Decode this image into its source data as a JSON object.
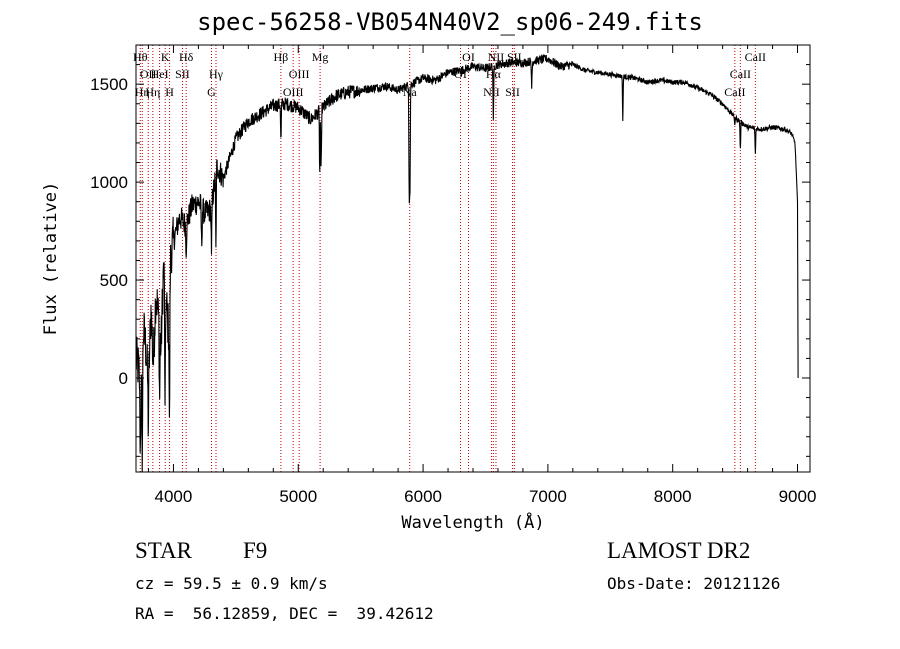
{
  "chart_data": {
    "type": "line",
    "title": "spec-56258-VB054N40V2_sp06-249.fits",
    "xlabel": "Wavelength (Å)",
    "ylabel": "Flux (relative)",
    "xlim": [
      3700,
      9100
    ],
    "ylim": [
      -480,
      1700
    ],
    "xticks": [
      4000,
      5000,
      6000,
      7000,
      8000,
      9000
    ],
    "xtick_labels": [
      "4000",
      "5000",
      "6000",
      "7000",
      "8000",
      "9000"
    ],
    "yticks": [
      0,
      500,
      1000,
      1500
    ],
    "ytick_labels": [
      "0",
      "500",
      "1000",
      "1500"
    ],
    "grid": false,
    "series": [
      {
        "x": [
          3700,
          3720,
          3740,
          3760,
          3780,
          3800,
          3820,
          3840,
          3860,
          3880,
          3900,
          3920,
          3940,
          3960,
          3980,
          4000,
          4050,
          4100,
          4150,
          4200,
          4250,
          4300,
          4350,
          4400,
          4450,
          4500,
          4600,
          4700,
          4800,
          4900,
          5000,
          5100,
          5200,
          5300,
          5400,
          5500,
          5600,
          5700,
          5800,
          5900,
          6000,
          6100,
          6200,
          6300,
          6400,
          6500,
          6600,
          6700,
          6800,
          6900,
          7000,
          7100,
          7200,
          7300,
          7400,
          7500,
          7600,
          7700,
          7800,
          7900,
          8000,
          8100,
          8200,
          8300,
          8400,
          8500,
          8600,
          8700,
          8800,
          8900,
          8950,
          8980,
          9000,
          9005
        ],
        "y": [
          100,
          50,
          -100,
          250,
          150,
          -50,
          350,
          100,
          450,
          300,
          150,
          550,
          400,
          250,
          650,
          700,
          820,
          780,
          880,
          900,
          840,
          860,
          1080,
          1020,
          1120,
          1220,
          1310,
          1350,
          1390,
          1400,
          1380,
          1320,
          1380,
          1440,
          1460,
          1470,
          1480,
          1490,
          1470,
          1500,
          1530,
          1520,
          1560,
          1570,
          1590,
          1580,
          1600,
          1610,
          1610,
          1620,
          1630,
          1590,
          1600,
          1570,
          1560,
          1550,
          1540,
          1530,
          1510,
          1520,
          1510,
          1510,
          1480,
          1450,
          1400,
          1330,
          1280,
          1270,
          1280,
          1270,
          1250,
          1200,
          900,
          0
        ]
      }
    ],
    "absorption_dips": [
      {
        "x": 3734,
        "y": -400
      },
      {
        "x": 3750,
        "y": -480
      },
      {
        "x": 3798,
        "y": -250
      },
      {
        "x": 3835,
        "y": 100
      },
      {
        "x": 3889,
        "y": -150
      },
      {
        "x": 3933,
        "y": -280
      },
      {
        "x": 3968,
        "y": -330
      },
      {
        "x": 4102,
        "y": 650
      },
      {
        "x": 4226,
        "y": 650
      },
      {
        "x": 4305,
        "y": 600
      },
      {
        "x": 4340,
        "y": 640
      },
      {
        "x": 4861,
        "y": 1180
      },
      {
        "x": 5172,
        "y": 1010
      },
      {
        "x": 5183,
        "y": 1020
      },
      {
        "x": 5889,
        "y": 900
      },
      {
        "x": 5895,
        "y": 950
      },
      {
        "x": 6563,
        "y": 1270
      },
      {
        "x": 6870,
        "y": 1480
      },
      {
        "x": 7600,
        "y": 1310
      },
      {
        "x": 8498,
        "y": 1290
      },
      {
        "x": 8542,
        "y": 1150
      },
      {
        "x": 8662,
        "y": 1130
      }
    ],
    "line_markers": [
      {
        "x": 3734,
        "label": "Hθ",
        "row": 0
      },
      {
        "x": 3750,
        "label": "Hη",
        "row": 2
      },
      {
        "x": 3798,
        "label": "OII",
        "row": 1
      },
      {
        "x": 3835,
        "label": "Hη",
        "row": 2
      },
      {
        "x": 3889,
        "label": "HeI",
        "row": 1
      },
      {
        "x": 3934,
        "label": "K",
        "row": 0
      },
      {
        "x": 3969,
        "label": "H",
        "row": 2
      },
      {
        "x": 4072,
        "label": "SII",
        "row": 1
      },
      {
        "x": 4102,
        "label": "Hδ",
        "row": 0
      },
      {
        "x": 4305,
        "label": "G",
        "row": 2
      },
      {
        "x": 4341,
        "label": "Hγ",
        "row": 1
      },
      {
        "x": 4861,
        "label": "Hβ",
        "row": 0
      },
      {
        "x": 4959,
        "label": "OIII",
        "row": 2
      },
      {
        "x": 5007,
        "label": "OIII",
        "row": 1
      },
      {
        "x": 5175,
        "label": "Mg",
        "row": 0
      },
      {
        "x": 5893,
        "label": "Na",
        "row": 2
      },
      {
        "x": 6300,
        "label": "OI",
        "row": 1
      },
      {
        "x": 6364,
        "label": "OI",
        "row": 0
      },
      {
        "x": 6548,
        "label": "NII",
        "row": 2
      },
      {
        "x": 6563,
        "label": "Hα",
        "row": 1
      },
      {
        "x": 6584,
        "label": "NII",
        "row": 0
      },
      {
        "x": 6717,
        "label": "SII",
        "row": 2
      },
      {
        "x": 6731,
        "label": "SII",
        "row": 0
      },
      {
        "x": 8498,
        "label": "CaII",
        "row": 2
      },
      {
        "x": 8542,
        "label": "CaII",
        "row": 1
      },
      {
        "x": 8662,
        "label": "CaII",
        "row": 0
      }
    ]
  },
  "info": {
    "class": "STAR",
    "subclass": "F9",
    "survey": "LAMOST DR2",
    "redshift": "cz = 59.5 ± 0.9 km/s",
    "obsdate": "Obs-Date: 20121126",
    "coords": "RA =  56.12859, DEC =  39.42612"
  },
  "colors": {
    "spectrum": "#000000",
    "line_markers": "#c00000",
    "axes": "#000000"
  }
}
